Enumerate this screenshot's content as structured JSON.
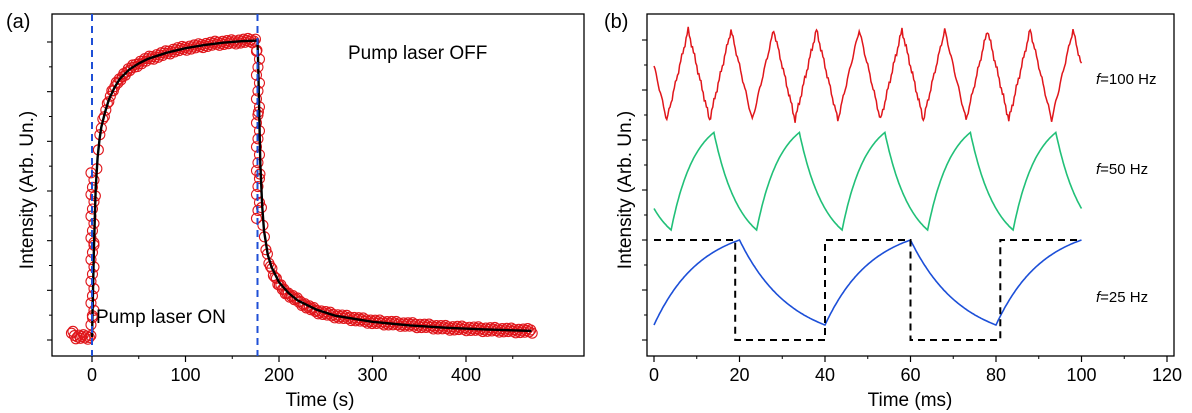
{
  "chart_data": [
    {
      "panel_label": "(a)",
      "type": "scatter",
      "xlabel": "Time (s)",
      "ylabel": "Intensity (Arb. Un.)",
      "xlim": [
        -30,
        475
      ],
      "ylim": [
        0,
        1
      ],
      "x_ticks": [
        0,
        100,
        200,
        300,
        400
      ],
      "y_ticks_labeled": false,
      "annotations": [
        "Pump laser OFF",
        "Pump laser ON"
      ],
      "vlines": [
        0,
        177
      ],
      "marker_color": "#e0161b",
      "fit_color": "#000000",
      "vline_color": "#1f4fd6",
      "series": [
        {
          "kind": "markers",
          "x": [
            -20,
            -15,
            -10,
            -5,
            -2,
            0,
            1,
            2,
            3,
            4,
            5,
            6,
            8,
            10,
            12,
            15,
            18,
            22,
            26,
            30,
            35,
            40,
            45,
            50,
            60,
            70,
            80,
            90,
            100,
            110,
            120,
            130,
            140,
            150,
            160,
            170,
            176,
            177,
            178,
            179,
            180,
            182,
            184,
            186,
            190,
            195,
            200,
            210,
            220,
            230,
            240,
            260,
            280,
            300,
            320,
            340,
            360,
            380,
            400,
            420,
            440,
            460,
            470
          ],
          "y": [
            0.01,
            0.01,
            0.01,
            0.01,
            0.01,
            0.01,
            0.2,
            0.32,
            0.42,
            0.5,
            0.56,
            0.6,
            0.66,
            0.7,
            0.73,
            0.76,
            0.79,
            0.82,
            0.84,
            0.86,
            0.875,
            0.89,
            0.9,
            0.91,
            0.925,
            0.935,
            0.945,
            0.955,
            0.96,
            0.965,
            0.97,
            0.975,
            0.978,
            0.98,
            0.983,
            0.985,
            0.985,
            0.92,
            0.75,
            0.6,
            0.5,
            0.4,
            0.34,
            0.3,
            0.25,
            0.21,
            0.18,
            0.15,
            0.13,
            0.11,
            0.095,
            0.08,
            0.07,
            0.06,
            0.055,
            0.05,
            0.045,
            0.04,
            0.038,
            0.035,
            0.033,
            0.03,
            0.03
          ]
        },
        {
          "kind": "fit",
          "x": [
            0,
            2,
            4,
            6,
            8,
            10,
            14,
            18,
            24,
            30,
            40,
            50,
            60,
            80,
            100,
            120,
            140,
            160,
            177,
            178,
            179,
            180,
            182,
            184,
            188,
            192,
            200,
            210,
            220,
            240,
            260,
            300,
            340,
            380,
            420,
            470
          ],
          "y": [
            0.01,
            0.3,
            0.5,
            0.6,
            0.66,
            0.7,
            0.75,
            0.79,
            0.83,
            0.86,
            0.89,
            0.91,
            0.925,
            0.945,
            0.96,
            0.97,
            0.978,
            0.983,
            0.985,
            0.88,
            0.72,
            0.58,
            0.44,
            0.36,
            0.28,
            0.24,
            0.19,
            0.155,
            0.13,
            0.1,
            0.08,
            0.06,
            0.048,
            0.04,
            0.035,
            0.03
          ]
        }
      ]
    },
    {
      "panel_label": "(b)",
      "type": "line",
      "xlabel": "Time (ms)",
      "ylabel": "Intensity (Arb. Un.)",
      "xlim": [
        -1,
        120
      ],
      "ylim": [
        0,
        6
      ],
      "x_ticks": [
        0,
        20,
        40,
        60,
        80,
        100,
        120
      ],
      "y_ticks_labeled": false,
      "series": [
        {
          "name": "f=100 Hz",
          "name_italic": "f",
          "name_rest": "=100 Hz",
          "color": "#e0161b",
          "kind": "triangle",
          "period": 10,
          "y_min": 4.4,
          "y_max": 6.2
        },
        {
          "name": "f=50 Hz",
          "name_italic": "f",
          "name_rest": "=50 Hz",
          "color": "#21c078",
          "kind": "exp",
          "period": 20,
          "y_min": 2.2,
          "y_max": 4.15
        },
        {
          "name": "f=25 Hz",
          "name_italic": "f",
          "name_rest": "=25 Hz",
          "color": "#1c4fd8",
          "kind": "exp",
          "period": 40,
          "y_min": 0.3,
          "y_max": 2.0
        },
        {
          "name": "square",
          "color": "#000000",
          "kind": "square",
          "x": [
            0,
            19,
            19,
            40,
            40,
            60,
            60,
            81,
            81,
            100
          ],
          "y": [
            2,
            2,
            0,
            0,
            2,
            2,
            0,
            0,
            2,
            2
          ]
        }
      ]
    }
  ]
}
